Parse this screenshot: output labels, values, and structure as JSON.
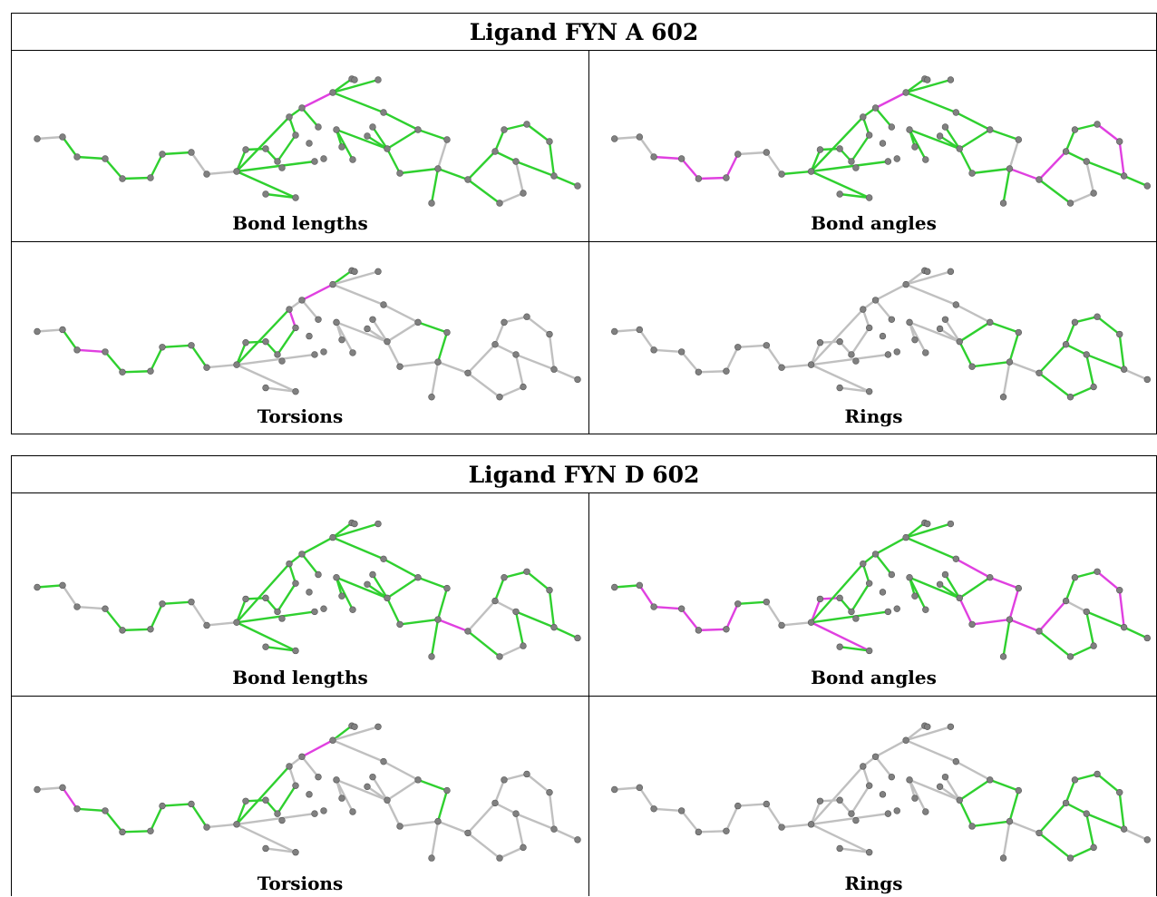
{
  "colors": {
    "good": "#2fd02f",
    "outlier": "#e040e0",
    "none": "#c0c0c0",
    "atom": "#808080"
  },
  "panels": [
    {
      "title": "Ligand FYN A 602",
      "cells": [
        {
          "caption": "Bond lengths",
          "good": "all",
          "outlier": [
            [
              15,
              16
            ]
          ],
          "none": [
            [
              0,
              1
            ],
            [
              7,
              8
            ],
            [
              8,
              9
            ],
            [
              21,
              22
            ],
            [
              28,
              29
            ],
            [
              29,
              30
            ],
            [
              30,
              31
            ]
          ]
        },
        {
          "caption": "Bond angles",
          "good": "all",
          "outlier": [
            [
              2,
              3
            ],
            [
              3,
              4
            ],
            [
              4,
              5
            ],
            [
              5,
              6
            ],
            [
              15,
              16
            ],
            [
              22,
              26
            ],
            [
              26,
              27
            ],
            [
              32,
              33
            ],
            [
              33,
              34
            ]
          ],
          "none": [
            [
              0,
              1
            ],
            [
              1,
              2
            ],
            [
              6,
              7
            ],
            [
              7,
              8
            ],
            [
              21,
              22
            ],
            [
              28,
              29
            ],
            [
              29,
              30
            ],
            [
              30,
              31
            ]
          ]
        },
        {
          "caption": "Torsions",
          "good": "set",
          "outlier": [
            [
              2,
              3
            ],
            [
              13,
              14
            ],
            [
              15,
              16
            ]
          ],
          "good_list": [
            [
              1,
              2
            ],
            [
              3,
              4
            ],
            [
              4,
              5
            ],
            [
              5,
              6
            ],
            [
              6,
              7
            ],
            [
              7,
              8
            ],
            [
              9,
              10
            ],
            [
              10,
              11
            ],
            [
              11,
              12
            ],
            [
              12,
              13
            ],
            [
              9,
              14
            ],
            [
              16,
              17
            ],
            [
              17,
              18
            ],
            [
              18,
              20
            ],
            [
              20,
              21
            ],
            [
              21,
              22
            ]
          ],
          "none": "rest"
        },
        {
          "caption": "Rings",
          "good": "set",
          "outlier": [],
          "good_list": [
            [
              20,
              21
            ],
            [
              21,
              22
            ],
            [
              22,
              23
            ],
            [
              23,
              24
            ],
            [
              24,
              20
            ],
            [
              26,
              27
            ],
            [
              27,
              28
            ],
            [
              28,
              29
            ],
            [
              29,
              30
            ],
            [
              30,
              26
            ],
            [
              27,
              31
            ],
            [
              31,
              32
            ],
            [
              32,
              33
            ],
            [
              33,
              34
            ],
            [
              34,
              28
            ]
          ],
          "none": "rest"
        }
      ]
    },
    {
      "title": "Ligand FYN D 602",
      "cells": [
        {
          "caption": "Bond lengths",
          "good": "all",
          "outlier": [
            [
              22,
              26
            ]
          ],
          "none": [
            [
              1,
              2
            ],
            [
              2,
              3
            ],
            [
              7,
              8
            ],
            [
              8,
              9
            ],
            [
              26,
              27
            ],
            [
              27,
              28
            ],
            [
              29,
              30
            ],
            [
              30,
              31
            ]
          ]
        },
        {
          "caption": "Bond angles",
          "good": "all",
          "outlier": [
            [
              1,
              2
            ],
            [
              2,
              3
            ],
            [
              3,
              4
            ],
            [
              4,
              5
            ],
            [
              5,
              6
            ],
            [
              9,
              10
            ],
            [
              10,
              11
            ],
            [
              9,
              37
            ],
            [
              19,
              20
            ],
            [
              20,
              21
            ],
            [
              21,
              22
            ],
            [
              22,
              26
            ],
            [
              26,
              27
            ],
            [
              32,
              33
            ],
            [
              33,
              34
            ],
            [
              22,
              23
            ],
            [
              23,
              24
            ]
          ],
          "none": [
            [
              7,
              8
            ],
            [
              8,
              9
            ],
            [
              27,
              28
            ]
          ]
        },
        {
          "caption": "Torsions",
          "good": "set",
          "outlier": [
            [
              1,
              2
            ],
            [
              15,
              16
            ]
          ],
          "good_list": [
            [
              2,
              3
            ],
            [
              3,
              4
            ],
            [
              4,
              5
            ],
            [
              5,
              6
            ],
            [
              6,
              7
            ],
            [
              7,
              8
            ],
            [
              9,
              10
            ],
            [
              10,
              11
            ],
            [
              11,
              12
            ],
            [
              12,
              13
            ],
            [
              9,
              14
            ],
            [
              16,
              17
            ],
            [
              17,
              18
            ],
            [
              18,
              20
            ],
            [
              20,
              21
            ],
            [
              21,
              22
            ]
          ],
          "none": "rest"
        },
        {
          "caption": "Rings",
          "good": "set",
          "outlier": [],
          "good_list": [
            [
              20,
              21
            ],
            [
              21,
              22
            ],
            [
              22,
              23
            ],
            [
              23,
              24
            ],
            [
              24,
              20
            ],
            [
              26,
              27
            ],
            [
              27,
              28
            ],
            [
              28,
              29
            ],
            [
              29,
              30
            ],
            [
              30,
              26
            ],
            [
              27,
              31
            ],
            [
              31,
              32
            ],
            [
              32,
              33
            ],
            [
              33,
              34
            ],
            [
              34,
              28
            ]
          ],
          "none": "rest"
        }
      ]
    }
  ]
}
